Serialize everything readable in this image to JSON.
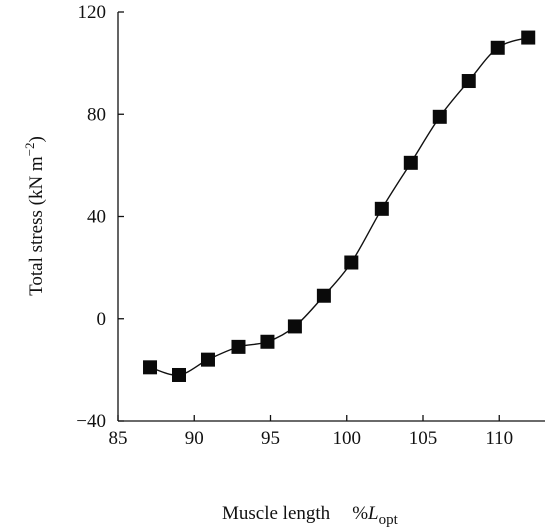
{
  "chart_data": {
    "type": "scatter",
    "title": "",
    "xlabel": "Muscle length",
    "xlabel_unit": {
      "prefix": "%",
      "symbol": "L",
      "subscript": "opt"
    },
    "ylabel": "Total stress (kN m",
    "ylabel_unit_exponent": "−2",
    "ylabel_close": ")",
    "xlim": [
      85,
      113
    ],
    "ylim": [
      -40,
      120
    ],
    "xticks": [
      85,
      90,
      95,
      100,
      105,
      110
    ],
    "xtick_labels": [
      "85",
      "90",
      "95",
      "100",
      "105",
      "110"
    ],
    "yticks": [
      -40,
      0,
      40,
      80,
      120
    ],
    "ytick_labels": [
      "−40",
      "0",
      "40",
      "80",
      "120"
    ],
    "grid": false,
    "legend": "none",
    "marker": "square",
    "line": "smooth",
    "series": [
      {
        "x": [
          87.1,
          89.0,
          90.9,
          92.9,
          94.8,
          96.6,
          98.5,
          100.3,
          102.3,
          104.2,
          106.1,
          108.0,
          109.9,
          111.9
        ],
        "y": [
          -19,
          -22,
          -16,
          -11,
          -9,
          -3,
          9,
          22,
          43,
          61,
          79,
          93,
          106,
          110
        ]
      }
    ]
  }
}
